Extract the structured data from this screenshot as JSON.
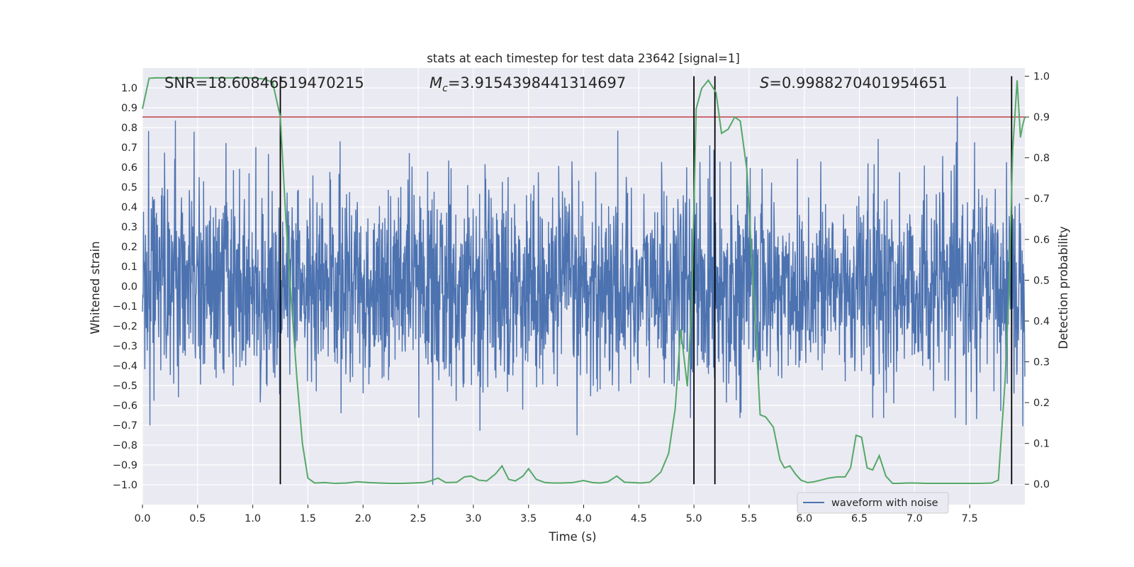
{
  "chart_data": {
    "type": "line",
    "title": "stats at each timestep for test data 23642 [signal=1]",
    "xlabel": "Time (s)",
    "ylabel": "Whitened strain",
    "ylabel_right": "Detection probability",
    "xlim": [
      0.0,
      8.0
    ],
    "ylim": [
      -1.1,
      1.1
    ],
    "ylim_right": [
      -0.05,
      1.02
    ],
    "x_ticks": [
      "0.0",
      "0.5",
      "1.0",
      "1.5",
      "2.0",
      "2.5",
      "3.0",
      "3.5",
      "4.0",
      "4.5",
      "5.0",
      "5.5",
      "6.0",
      "6.5",
      "7.0",
      "7.5"
    ],
    "x_tick_values": [
      0.0,
      0.5,
      1.0,
      1.5,
      2.0,
      2.5,
      3.0,
      3.5,
      4.0,
      4.5,
      5.0,
      5.5,
      6.0,
      6.5,
      7.0,
      7.5
    ],
    "y_ticks": [
      "1.0",
      "0.9",
      "0.8",
      "0.7",
      "0.6",
      "0.5",
      "0.4",
      "0.3",
      "0.2",
      "0.1",
      "0.0",
      "−0.1",
      "−0.2",
      "−0.3",
      "−0.4",
      "−0.5",
      "−0.6",
      "−0.7",
      "−0.8",
      "−0.9",
      "−1.0"
    ],
    "y_tick_values": [
      1.0,
      0.9,
      0.8,
      0.7,
      0.6,
      0.5,
      0.4,
      0.3,
      0.2,
      0.1,
      0.0,
      -0.1,
      -0.2,
      -0.3,
      -0.4,
      -0.5,
      -0.6,
      -0.7,
      -0.8,
      -0.9,
      -1.0
    ],
    "y_ticks_right": [
      "1.0",
      "0.9",
      "0.8",
      "0.7",
      "0.6",
      "0.5",
      "0.4",
      "0.3",
      "0.2",
      "0.1",
      "0.0"
    ],
    "y_tick_values_right": [
      1.0,
      0.9,
      0.8,
      0.7,
      0.6,
      0.5,
      0.4,
      0.3,
      0.2,
      0.1,
      0.0
    ],
    "annotations": {
      "snr": "SNR=18.60846519470215",
      "mc_symbol": "M",
      "mc_sub": "c",
      "mc_value": "=3.9154398441314697",
      "s_symbol": "S",
      "s_value": "=0.9988270401954651"
    },
    "threshold": {
      "value": 0.9,
      "axis": "right",
      "color": "#c44e52"
    },
    "event_lines": [
      1.25,
      5.0,
      5.19,
      7.88
    ],
    "series": [
      {
        "name": "waveform with noise",
        "axis": "left",
        "color": "#4c72b0",
        "kind": "noise",
        "amplitude_std": 0.25,
        "clip": [
          -1.0,
          1.0
        ]
      },
      {
        "name": "Detection probability",
        "axis": "right",
        "color": "#55a868",
        "x": [
          0.0,
          0.06,
          0.12,
          0.2,
          0.3,
          0.4,
          0.5,
          0.6,
          0.7,
          0.8,
          0.9,
          1.0,
          1.1,
          1.18,
          1.25,
          1.3,
          1.35,
          1.4,
          1.45,
          1.5,
          1.56,
          1.65,
          1.75,
          1.85,
          1.95,
          2.05,
          2.15,
          2.25,
          2.35,
          2.45,
          2.55,
          2.6,
          2.68,
          2.75,
          2.85,
          2.92,
          2.98,
          3.05,
          3.12,
          3.2,
          3.26,
          3.32,
          3.38,
          3.45,
          3.5,
          3.57,
          3.65,
          3.72,
          3.8,
          3.9,
          4.0,
          4.08,
          4.15,
          4.22,
          4.3,
          4.37,
          4.44,
          4.52,
          4.6,
          4.7,
          4.77,
          4.83,
          4.88,
          4.94,
          4.98,
          5.02,
          5.07,
          5.13,
          5.2,
          5.25,
          5.31,
          5.37,
          5.42,
          5.48,
          5.56,
          5.6,
          5.65,
          5.72,
          5.78,
          5.82,
          5.87,
          5.92,
          5.97,
          6.03,
          6.09,
          6.15,
          6.22,
          6.3,
          6.37,
          6.42,
          6.47,
          6.52,
          6.57,
          6.62,
          6.68,
          6.74,
          6.8,
          6.86,
          6.93,
          7.0,
          7.1,
          7.2,
          7.3,
          7.4,
          7.5,
          7.6,
          7.7,
          7.76,
          7.82,
          7.86,
          7.89,
          7.93,
          7.96,
          7.98,
          8.0
        ],
        "values": [
          0.92,
          0.995,
          0.996,
          0.996,
          0.996,
          0.996,
          0.996,
          0.996,
          0.996,
          0.996,
          0.996,
          0.996,
          0.993,
          0.985,
          0.9,
          0.65,
          0.45,
          0.26,
          0.1,
          0.015,
          0.003,
          0.004,
          0.002,
          0.003,
          0.006,
          0.004,
          0.003,
          0.002,
          0.002,
          0.003,
          0.004,
          0.007,
          0.015,
          0.004,
          0.005,
          0.018,
          0.02,
          0.01,
          0.008,
          0.025,
          0.045,
          0.012,
          0.008,
          0.02,
          0.038,
          0.012,
          0.004,
          0.003,
          0.003,
          0.004,
          0.009,
          0.004,
          0.003,
          0.006,
          0.02,
          0.005,
          0.004,
          0.003,
          0.005,
          0.03,
          0.075,
          0.185,
          0.38,
          0.24,
          0.44,
          0.92,
          0.97,
          0.99,
          0.96,
          0.86,
          0.87,
          0.9,
          0.89,
          0.77,
          0.38,
          0.17,
          0.165,
          0.14,
          0.06,
          0.04,
          0.045,
          0.025,
          0.01,
          0.004,
          0.006,
          0.01,
          0.015,
          0.018,
          0.018,
          0.04,
          0.12,
          0.115,
          0.04,
          0.035,
          0.07,
          0.02,
          0.002,
          0.002,
          0.003,
          0.003,
          0.002,
          0.002,
          0.002,
          0.002,
          0.002,
          0.002,
          0.003,
          0.01,
          0.25,
          0.5,
          0.82,
          0.99,
          0.85,
          0.88,
          0.9
        ],
        "display": "line_only"
      }
    ],
    "legend": {
      "entries": [
        "waveform with noise"
      ],
      "placement": "lower-right"
    },
    "grid": true
  }
}
